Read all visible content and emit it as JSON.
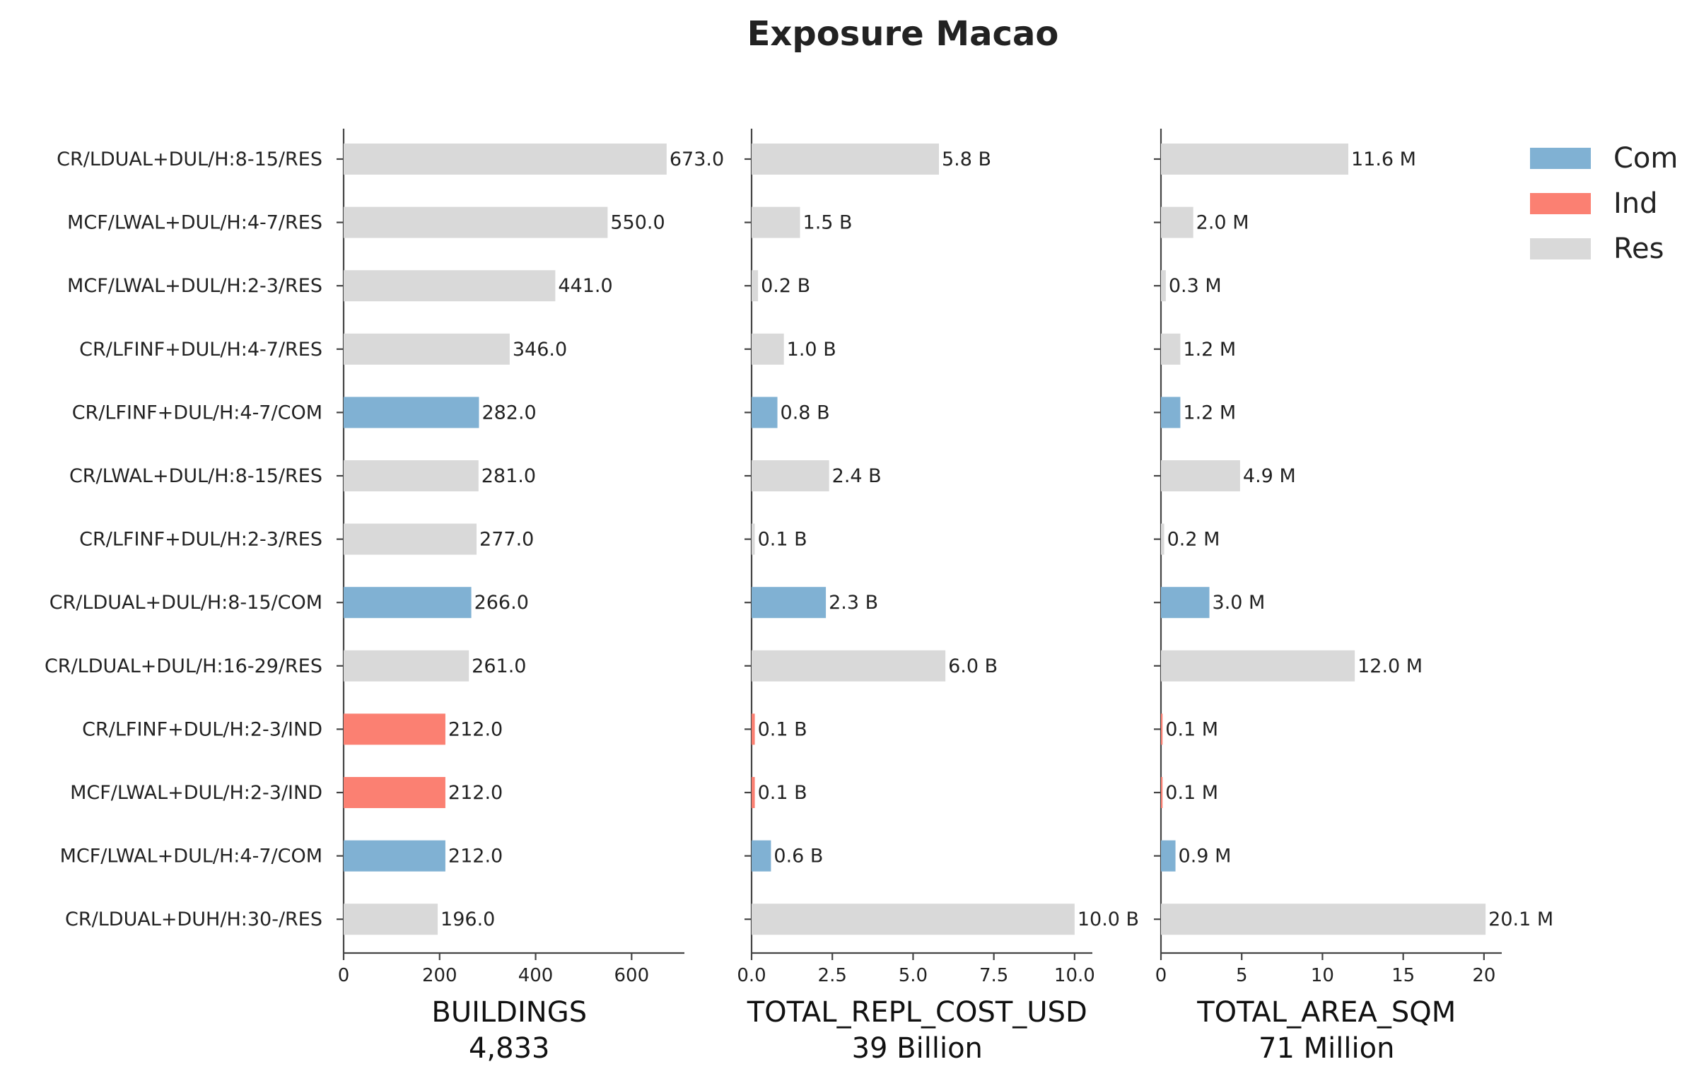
{
  "chart_data": {
    "type": "bar",
    "orientation": "horizontal",
    "title": "Exposure Macao",
    "categories": [
      "CR/LDUAL+DUL/H:8-15/RES",
      "MCF/LWAL+DUL/H:4-7/RES",
      "MCF/LWAL+DUL/H:2-3/RES",
      "CR/LFINF+DUL/H:4-7/RES",
      "CR/LFINF+DUL/H:4-7/COM",
      "CR/LWAL+DUL/H:8-15/RES",
      "CR/LFINF+DUL/H:2-3/RES",
      "CR/LDUAL+DUL/H:8-15/COM",
      "CR/LDUAL+DUL/H:16-29/RES",
      "CR/LFINF+DUL/H:2-3/IND",
      "MCF/LWAL+DUL/H:2-3/IND",
      "MCF/LWAL+DUL/H:4-7/COM",
      "CR/LDUAL+DUH/H:30-/RES"
    ],
    "occupancy": [
      "Res",
      "Res",
      "Res",
      "Res",
      "Com",
      "Res",
      "Res",
      "Com",
      "Res",
      "Ind",
      "Ind",
      "Com",
      "Res"
    ],
    "colors": {
      "Com": "#80b1d3",
      "Ind": "#fb8072",
      "Res": "#d9d9d9"
    },
    "legend": {
      "position": "top-right",
      "entries": [
        "Com",
        "Ind",
        "Res"
      ]
    },
    "panels": [
      {
        "xlabel": "BUILDINGS",
        "total": "4,833",
        "xlim": [
          0,
          710
        ],
        "ticks": [
          0,
          200,
          400,
          600
        ],
        "tick_labels": [
          "0",
          "200",
          "400",
          "600"
        ],
        "values": [
          673.0,
          550.0,
          441.0,
          346.0,
          282.0,
          281.0,
          277.0,
          266.0,
          261.0,
          212.0,
          212.0,
          212.0,
          196.0
        ],
        "labels": [
          "673.0",
          "550.0",
          "441.0",
          "346.0",
          "282.0",
          "281.0",
          "277.0",
          "266.0",
          "261.0",
          "212.0",
          "212.0",
          "212.0",
          "196.0"
        ]
      },
      {
        "xlabel": "TOTAL_REPL_COST_USD",
        "total": "39 Billion",
        "xlim": [
          0,
          10.55
        ],
        "ticks": [
          0,
          2.5,
          5,
          7.5,
          10
        ],
        "tick_labels": [
          "0.0",
          "2.5",
          "5.0",
          "7.5",
          "10.0"
        ],
        "values": [
          5.8,
          1.5,
          0.2,
          1.0,
          0.8,
          2.4,
          0.1,
          2.3,
          6.0,
          0.1,
          0.1,
          0.6,
          10.0
        ],
        "labels": [
          "5.8 B",
          "1.5 B",
          "0.2 B",
          "1.0 B",
          "0.8 B",
          "2.4 B",
          "0.1 B",
          "2.3 B",
          "6.0 B",
          "0.1 B",
          "0.1 B",
          "0.6 B",
          "10.0 B"
        ]
      },
      {
        "xlabel": "TOTAL_AREA_SQM",
        "total": "71 Million",
        "xlim": [
          0,
          21.1
        ],
        "ticks": [
          0,
          5,
          10,
          15,
          20
        ],
        "tick_labels": [
          "0",
          "5",
          "10",
          "15",
          "20"
        ],
        "values": [
          11.6,
          2.0,
          0.3,
          1.2,
          1.2,
          4.9,
          0.2,
          3.0,
          12.0,
          0.1,
          0.1,
          0.9,
          20.1
        ],
        "labels": [
          "11.6 M",
          "2.0 M",
          "0.3 M",
          "1.2 M",
          "1.2 M",
          "4.9 M",
          "0.2 M",
          "3.0 M",
          "12.0 M",
          "0.1 M",
          "0.1 M",
          "0.9 M",
          "20.1 M"
        ]
      }
    ]
  }
}
